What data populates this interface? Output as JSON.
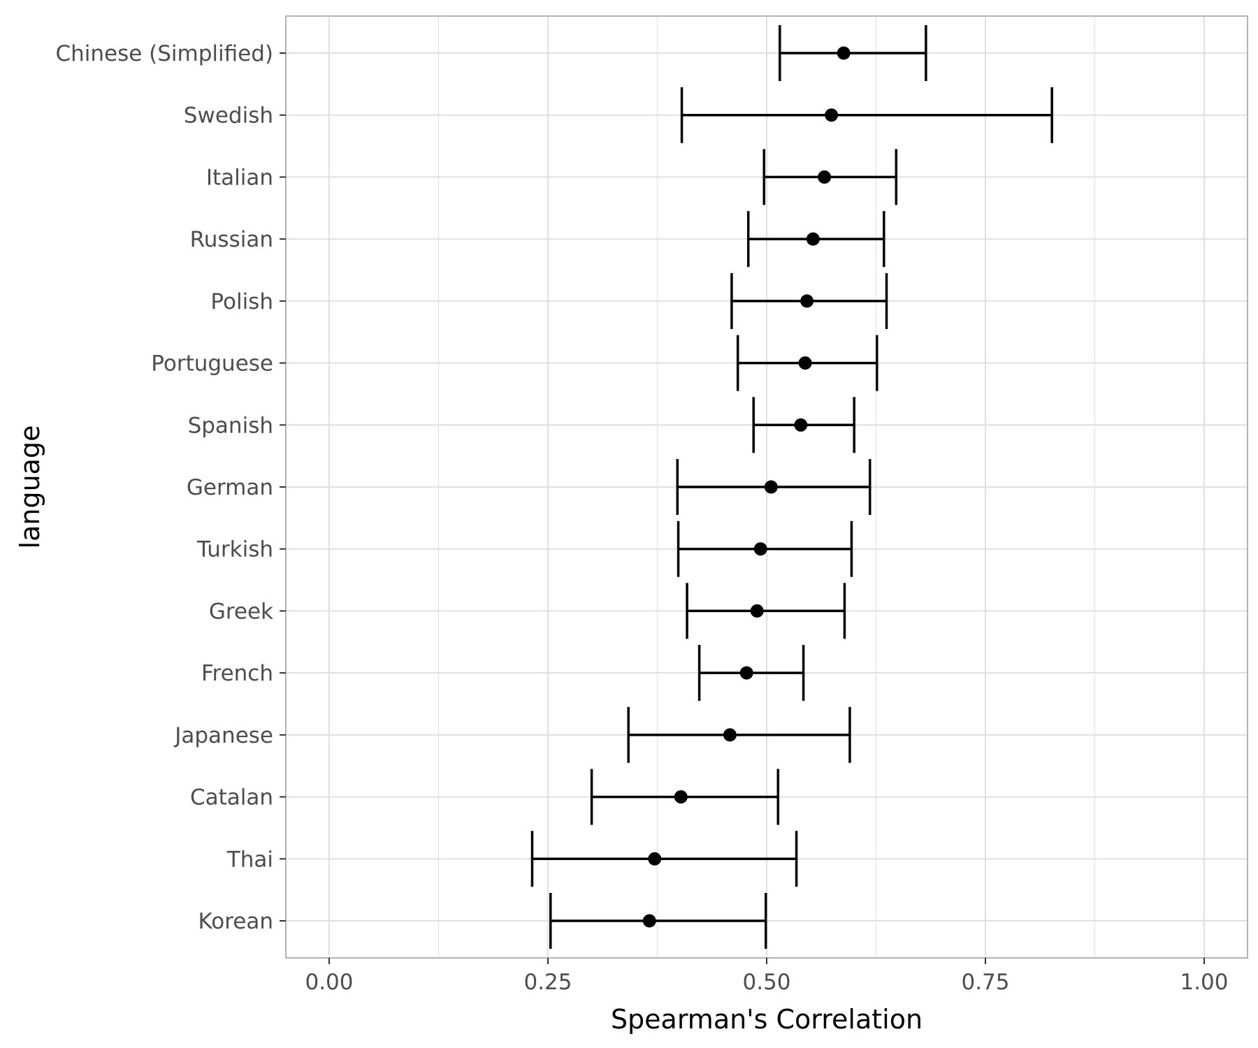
{
  "chart_data": {
    "type": "errorbar",
    "xlabel": "Spearman's Correlation",
    "ylabel": "language",
    "xlim": [
      -0.0488,
      1.0488
    ],
    "x_ticks": [
      "0.00",
      "0.25",
      "0.50",
      "0.75",
      "1.00"
    ],
    "x_tick_values": [
      0,
      0.25,
      0.5,
      0.75,
      1.0
    ],
    "grid": true,
    "theme": "light",
    "categories": [
      "Chinese (Simplified)",
      "Swedish",
      "Italian",
      "Russian",
      "Polish",
      "Portuguese",
      "Spanish",
      "German",
      "Turkish",
      "Greek",
      "French",
      "Japanese",
      "Catalan",
      "Thai",
      "Korean"
    ],
    "estimate": [
      0.588,
      0.574,
      0.566,
      0.553,
      0.546,
      0.544,
      0.539,
      0.505,
      0.493,
      0.489,
      0.477,
      0.458,
      0.402,
      0.372,
      0.366
    ],
    "lower": [
      0.515,
      0.403,
      0.497,
      0.479,
      0.46,
      0.467,
      0.485,
      0.398,
      0.399,
      0.409,
      0.423,
      0.342,
      0.3,
      0.232,
      0.253
    ],
    "upper": [
      0.682,
      0.826,
      0.648,
      0.634,
      0.637,
      0.626,
      0.6,
      0.618,
      0.597,
      0.589,
      0.542,
      0.595,
      0.513,
      0.534,
      0.499
    ],
    "colors": {
      "mark": "#000000",
      "grid": "#e0e0e0",
      "panel_border": "#b3b3b3",
      "tick_text": "#4d4d4d"
    }
  }
}
